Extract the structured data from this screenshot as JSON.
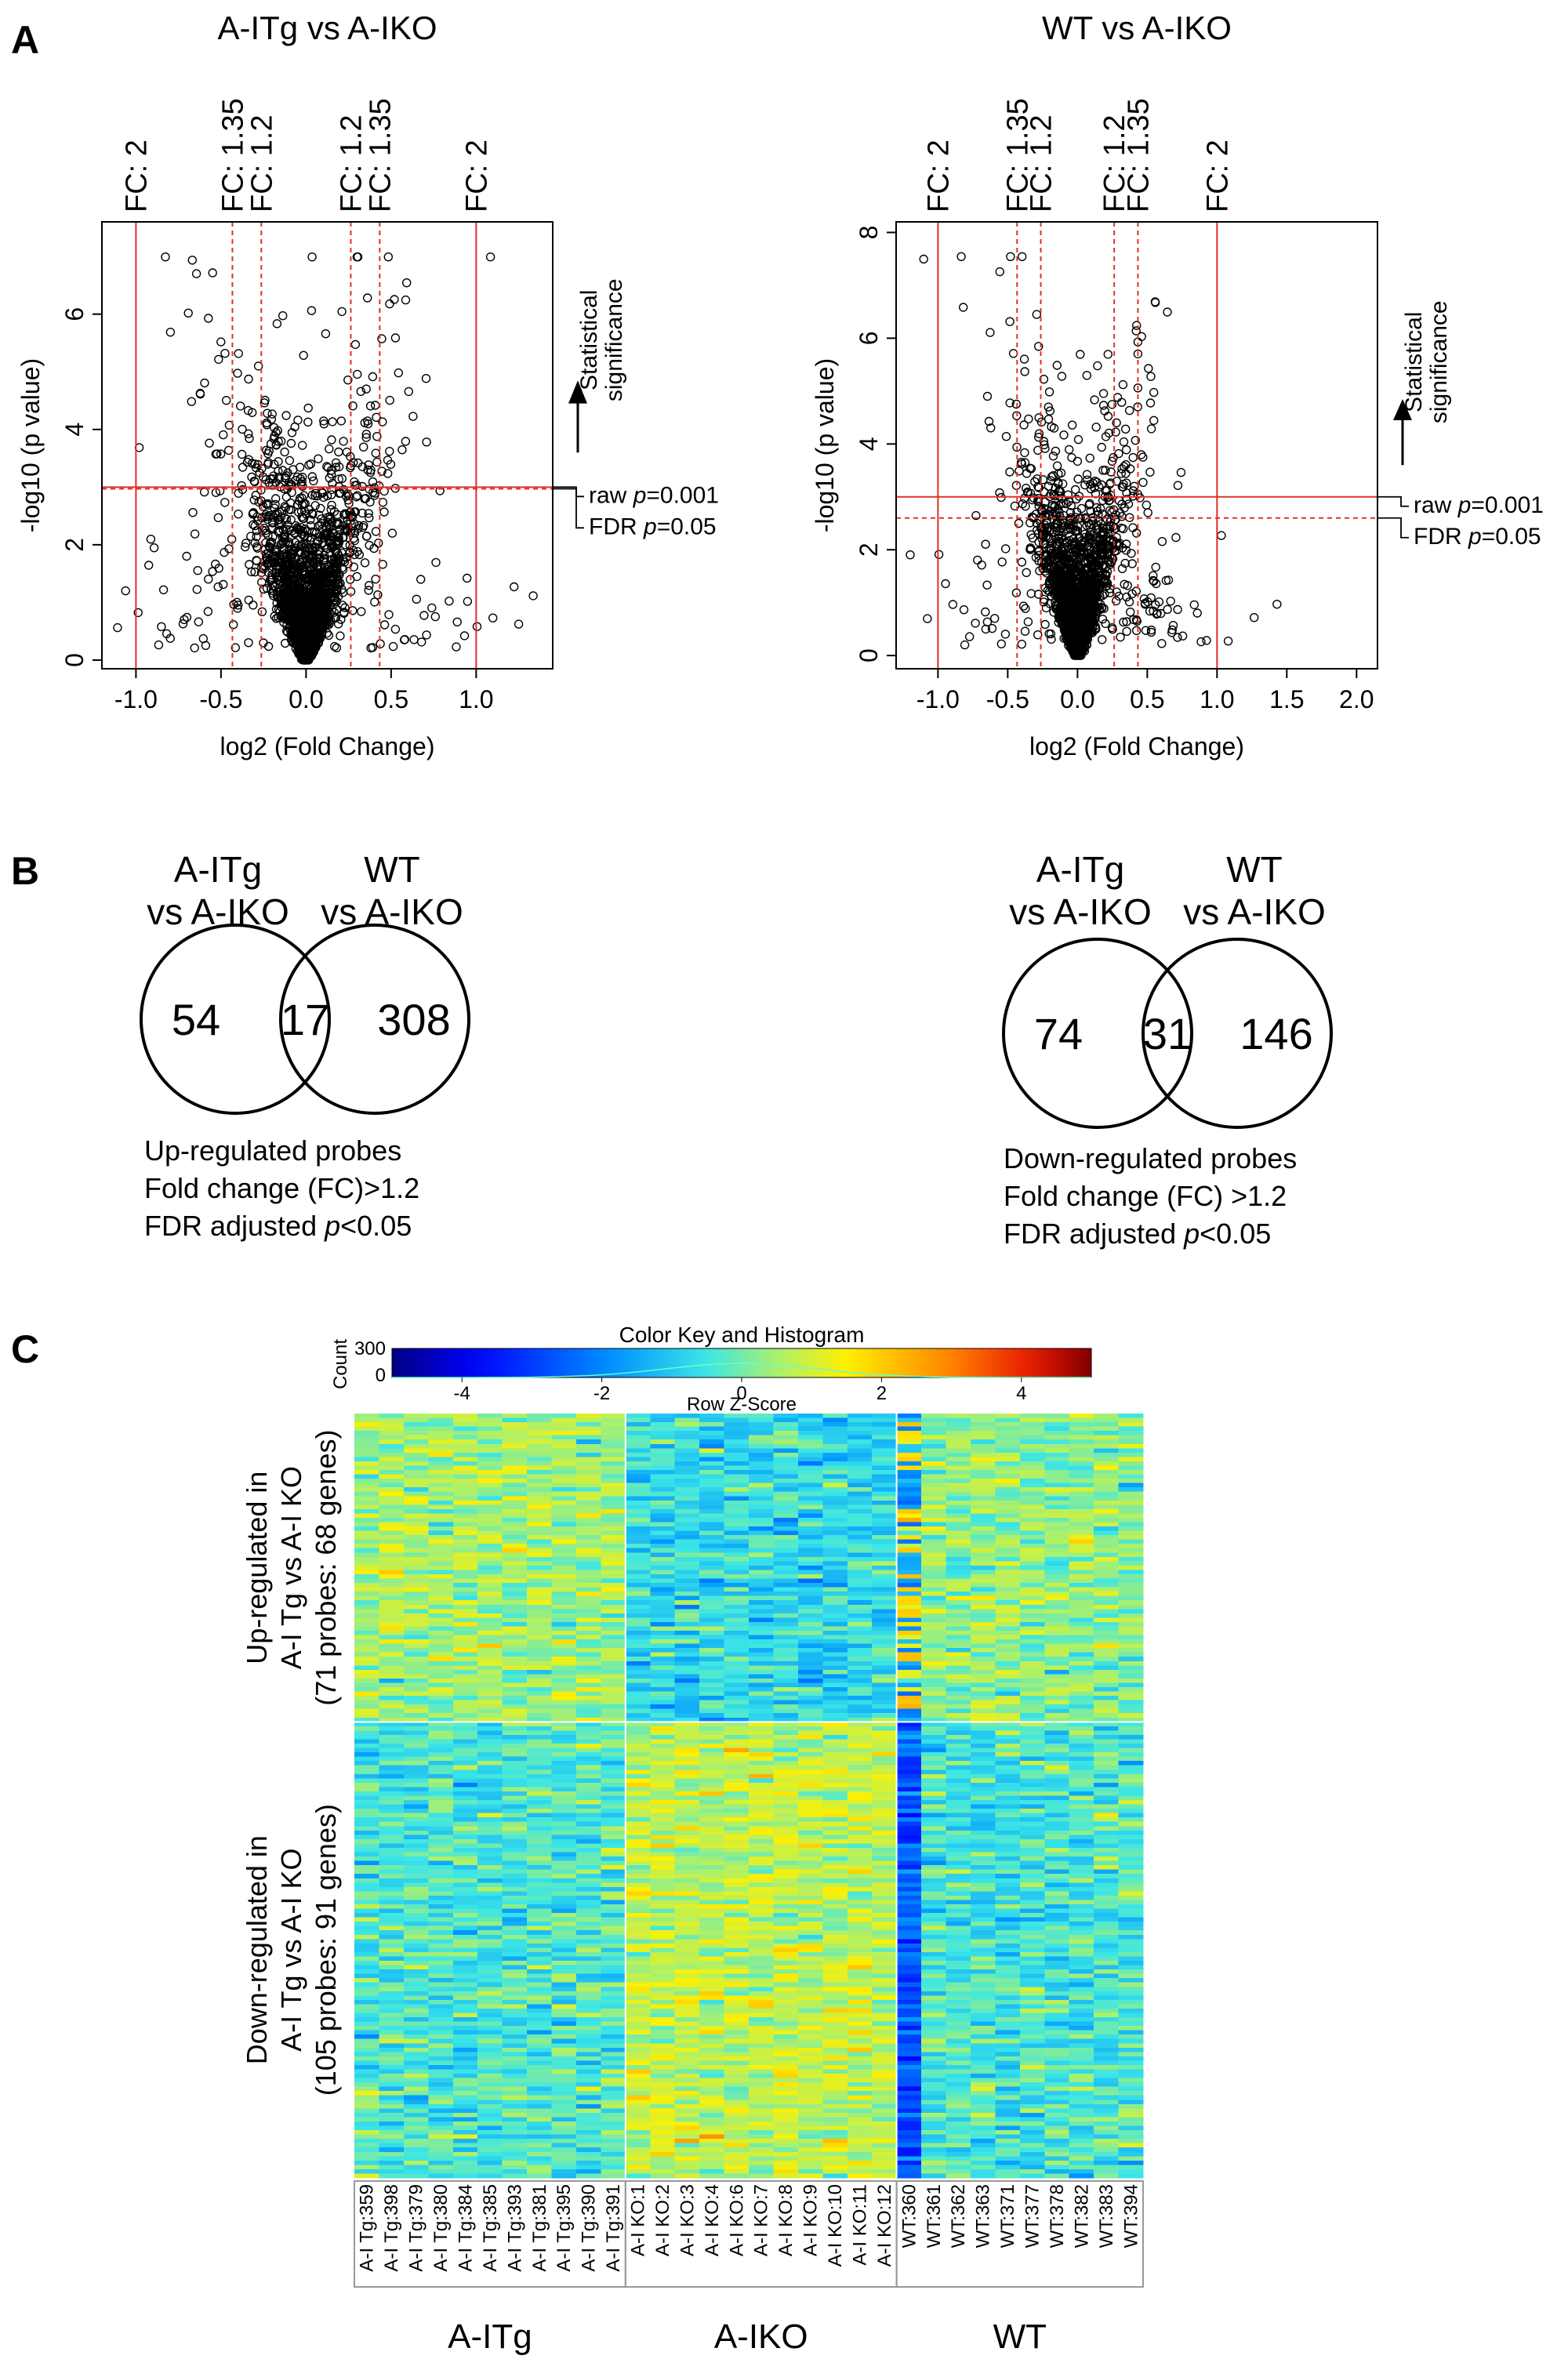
{
  "panels": {
    "a": "A",
    "b": "B",
    "c": "C"
  },
  "chart_data": [
    {
      "type": "scatter",
      "title": "A-ITg vs A-IKO",
      "xlabel": "log2 (Fold Change)",
      "ylabel": "-log10 (p value)",
      "xlim": [
        -1.2,
        1.45
      ],
      "ylim": [
        -0.15,
        7.6
      ],
      "xticks": [
        "-1.0",
        "-0.5",
        "0.0",
        "0.5",
        "1.0"
      ],
      "xtick_values": [
        -1.0,
        -0.5,
        0.0,
        0.5,
        1.0
      ],
      "yticks": [
        "0",
        "2",
        "4",
        "6"
      ],
      "ytick_values": [
        0,
        2,
        4,
        6
      ],
      "fc_lines": [
        {
          "label": "FC: 2",
          "x": -1.0,
          "style": "solid"
        },
        {
          "label": "FC: 1.35",
          "x": -0.433,
          "style": "dashed"
        },
        {
          "label": "FC: 1.2",
          "x": -0.263,
          "style": "dashed"
        },
        {
          "label": "FC: 1.2",
          "x": 0.263,
          "style": "dashed"
        },
        {
          "label": "FC: 1.35",
          "x": 0.433,
          "style": "dashed"
        },
        {
          "label": "FC: 2",
          "x": 1.0,
          "style": "solid"
        }
      ],
      "thresholds": [
        {
          "label_prefix": "raw ",
          "label_var": "p",
          "label_suffix": "=0.001",
          "y": 3.0,
          "style": "solid"
        },
        {
          "label_prefix": "FDR ",
          "label_var": "p",
          "label_suffix": "=0.05",
          "y": 2.97,
          "style": "dashed"
        }
      ],
      "arrow_label": [
        "Statistical",
        "significance"
      ],
      "points_description_seed": 11
    },
    {
      "type": "scatter",
      "title": "WT vs A-IKO",
      "xlabel": "log2 (Fold Change)",
      "ylabel": "-log10 (p value)",
      "xlim": [
        -1.3,
        2.15
      ],
      "ylim": [
        -0.25,
        8.2
      ],
      "xticks": [
        "-1.0",
        "-0.5",
        "0.0",
        "0.5",
        "1.0",
        "1.5",
        "2.0"
      ],
      "xtick_values": [
        -1.0,
        -0.5,
        0.0,
        0.5,
        1.0,
        1.5,
        2.0
      ],
      "yticks": [
        "0",
        "2",
        "4",
        "6",
        "8"
      ],
      "ytick_values": [
        0,
        2,
        4,
        6,
        8
      ],
      "fc_lines": [
        {
          "label": "FC: 2",
          "x": -1.0,
          "style": "solid"
        },
        {
          "label": "FC: 1.35",
          "x": -0.433,
          "style": "dashed"
        },
        {
          "label": "FC: 1.2",
          "x": -0.263,
          "style": "dashed"
        },
        {
          "label": "FC: 1.2",
          "x": 0.263,
          "style": "dashed"
        },
        {
          "label": "FC: 1.35",
          "x": 0.433,
          "style": "dashed"
        },
        {
          "label": "FC: 2",
          "x": 1.0,
          "style": "solid"
        }
      ],
      "thresholds": [
        {
          "label_prefix": "raw ",
          "label_var": "p",
          "label_suffix": "=0.001",
          "y": 3.0,
          "style": "solid"
        },
        {
          "label_prefix": "FDR ",
          "label_var": "p",
          "label_suffix": "=0.05",
          "y": 2.6,
          "style": "dashed"
        }
      ],
      "arrow_label": [
        "Statistical",
        "significance"
      ],
      "points_description_seed": 23
    }
  ],
  "venn": [
    {
      "left_title": [
        "A-ITg",
        "vs A-IKO"
      ],
      "right_title": [
        "WT",
        "vs A-IKO"
      ],
      "left_only": "54",
      "overlap": "17",
      "right_only": "308",
      "notes": [
        {
          "text": "Up-regulated probes"
        },
        {
          "text": "Fold change (FC)>1.2"
        },
        {
          "text": "FDR adjusted ",
          "italic": "p",
          "tail": "<0.05"
        }
      ]
    },
    {
      "left_title": [
        "A-ITg",
        "vs A-IKO"
      ],
      "right_title": [
        "WT",
        "vs A-IKO"
      ],
      "left_only": "74",
      "overlap": "31",
      "right_only": "146",
      "notes": [
        {
          "text": "Down-regulated probes"
        },
        {
          "text": "Fold change (FC) >1.2"
        },
        {
          "text": "FDR adjusted ",
          "italic": "p",
          "tail": "<0.05"
        }
      ]
    }
  ],
  "heatmap": {
    "type": "heatmap",
    "color_key": {
      "title": "Color Key and Histogram",
      "ylabel": "Count",
      "yticks": [
        "300",
        "0"
      ],
      "xlabel": "Row Z-Score",
      "xticks": [
        "-4",
        "-2",
        "0",
        "2",
        "4"
      ],
      "xtick_values": [
        -4,
        -2,
        0,
        2,
        4
      ],
      "range": [
        -5,
        5
      ]
    },
    "row_groups": [
      {
        "lines": [
          "Up-regulated in",
          "A-I Tg vs A-I KO",
          "(71 probes: 68 genes)"
        ],
        "rows": 71
      },
      {
        "lines": [
          "Down-regulated in",
          "A-I Tg vs A-I KO",
          "(105 probes: 91 genes)"
        ],
        "rows": 105
      }
    ],
    "column_groups": [
      {
        "name": "A-ITg",
        "samples": [
          "A-I Tg:359",
          "A-I Tg:398",
          "A-I Tg:379",
          "A-I Tg:380",
          "A-I Tg:384",
          "A-I Tg:385",
          "A-I Tg:393",
          "A-I Tg:381",
          "A-I Tg:395",
          "A-I Tg:390",
          "A-I Tg:391"
        ]
      },
      {
        "name": "A-IKO",
        "samples": [
          "A-I KO:1",
          "A-I KO:2",
          "A-I KO:3",
          "A-I KO:4",
          "A-I KO:6",
          "A-I KO:7",
          "A-I KO:8",
          "A-I KO:9",
          "A-I KO:10",
          "A-I KO:11",
          "A-I KO:12"
        ]
      },
      {
        "name": "WT",
        "samples": [
          "WT:360",
          "WT:361",
          "WT:362",
          "WT:363",
          "WT:371",
          "WT:377",
          "WT:378",
          "WT:382",
          "WT:383",
          "WT:394"
        ]
      }
    ]
  }
}
